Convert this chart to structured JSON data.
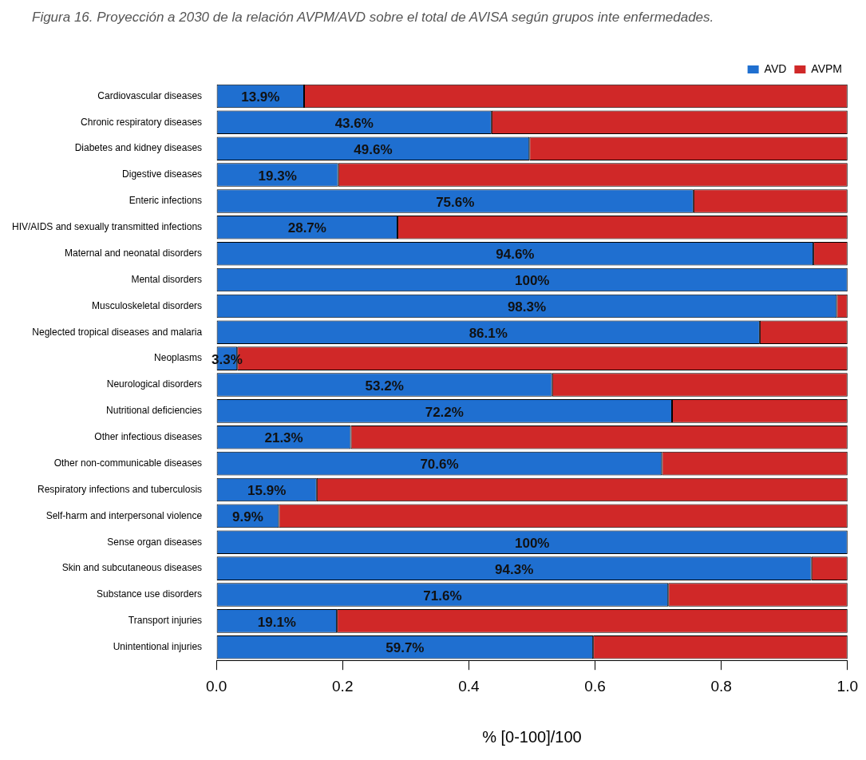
{
  "chart_data": {
    "type": "bar",
    "orientation": "horizontal",
    "stacked": true,
    "title": "Figura 16. Proyección a 2030 de la relación AVPM/AVD sobre el total de AVISA según grupos inte enfermedades.",
    "xlabel": "% [0-100]/100",
    "categories": [
      "Cardiovascular diseases",
      "Chronic respiratory diseases",
      "Diabetes and kidney diseases",
      "Digestive diseases",
      "Enteric infections",
      "HIV/AIDS and sexually transmitted infections",
      "Maternal and neonatal disorders",
      "Mental disorders",
      "Musculoskeletal disorders",
      "Neglected tropical diseases and malaria",
      "Neoplasms",
      "Neurological disorders",
      "Nutritional deficiencies",
      "Other infectious diseases",
      "Other non-communicable diseases",
      "Respiratory infections and tuberculosis",
      "Self-harm and interpersonal violence",
      "Sense organ diseases",
      "Skin and subcutaneous diseases",
      "Substance use disorders",
      "Transport injuries",
      "Unintentional injuries"
    ],
    "series": [
      {
        "name": "AVD",
        "color": "#1f6fd0",
        "values": [
          0.139,
          0.436,
          0.496,
          0.193,
          0.756,
          0.287,
          0.946,
          1,
          0.983,
          0.861,
          0.033,
          0.532,
          0.722,
          0.213,
          0.706,
          0.159,
          0.099,
          1,
          0.943,
          0.716,
          0.191,
          0.597
        ],
        "value_labels": [
          "13.9%",
          "43.6%",
          "49.6%",
          "19.3%",
          "75.6%",
          "28.7%",
          "94.6%",
          "100%",
          "98.3%",
          "86.1%",
          "3.3%",
          "53.2%",
          "72.2%",
          "21.3%",
          "70.6%",
          "15.9%",
          "9.9%",
          "100%",
          "94.3%",
          "71.6%",
          "19.1%",
          "59.7%"
        ]
      },
      {
        "name": "AVPM",
        "color": "#d02828",
        "values": [
          0.861,
          0.564,
          0.504,
          0.807,
          0.244,
          0.713,
          0.054,
          0,
          0.017,
          0.139,
          0.967,
          0.468,
          0.278,
          0.787,
          0.294,
          0.841,
          0.901,
          0,
          0.057,
          0.284,
          0.809,
          0.403
        ]
      }
    ],
    "xlim": [
      0,
      1
    ],
    "xticks": [
      {
        "value": 0,
        "label": "0.0"
      },
      {
        "value": 0.2,
        "label": "0.2"
      },
      {
        "value": 0.4,
        "label": "0.4"
      },
      {
        "value": 0.6,
        "label": "0.6"
      },
      {
        "value": 0.8,
        "label": "0.8"
      },
      {
        "value": 1,
        "label": "1.0"
      }
    ],
    "grid": false,
    "legend": "top right"
  }
}
